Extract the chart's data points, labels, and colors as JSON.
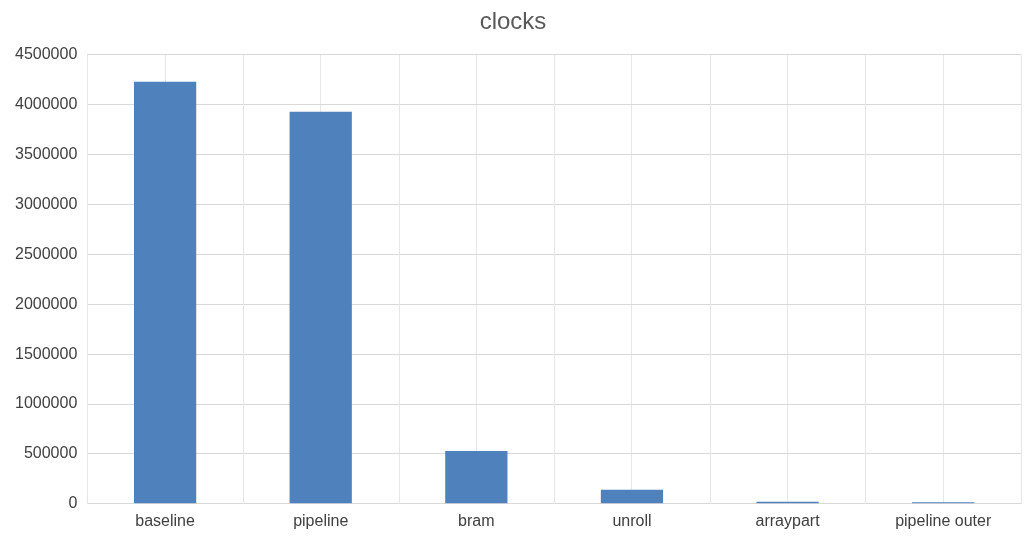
{
  "chart_data": {
    "type": "bar",
    "title": "clocks",
    "categories": [
      "baseline",
      "pipeline",
      "bram",
      "unroll",
      "arraypart",
      "pipeline outer"
    ],
    "values": [
      4230000,
      3930000,
      530000,
      140000,
      20000,
      15000
    ],
    "color": "#4f81bd",
    "ylim": [
      0,
      4500000
    ],
    "yticks": [
      0,
      500000,
      1000000,
      1500000,
      2000000,
      2500000,
      3000000,
      3500000,
      4000000,
      4500000
    ],
    "grid": true,
    "legend": false
  }
}
